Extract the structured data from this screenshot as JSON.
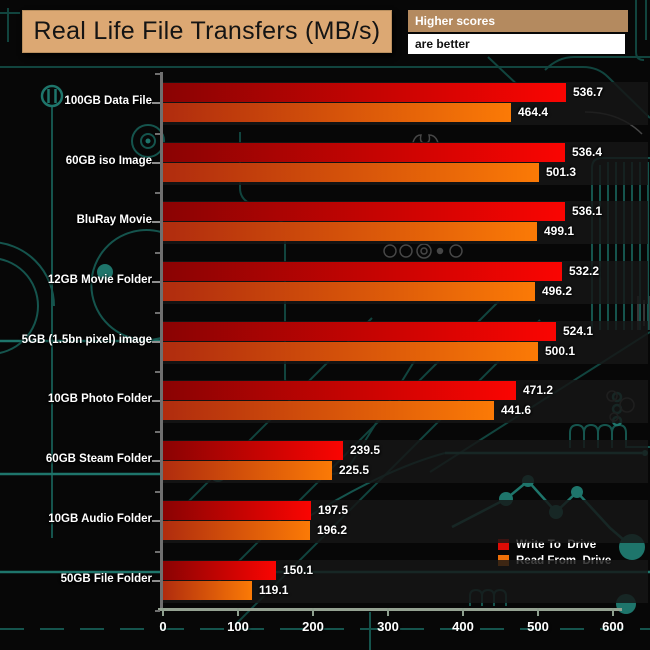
{
  "title": "Real Life File Transfers (MB/s)",
  "banner": {
    "line1": "Higher scores",
    "line2": "are better"
  },
  "legend": [
    {
      "label": "Write To  Drive",
      "color": "#dd0b05"
    },
    {
      "label": "Read From  Drive",
      "color": "#ee6f08"
    }
  ],
  "colors": {
    "write_start": "#8a0303",
    "write_end": "#fa0502",
    "read_start": "#b02c0e",
    "read_end": "#fb7a06",
    "title_box_bg": "#dca873",
    "higher_box_bg": "#b48a5f",
    "circuit_teal": "#1e756b",
    "background": "#070707"
  },
  "chart_data": {
    "type": "bar",
    "orientation": "horizontal",
    "title": "Real Life File Transfers (MB/s)",
    "categories": [
      "100GB Data File",
      "60GB iso Image",
      "BluRay Movie",
      "12GB Movie Folder",
      "5GB (1.5bn pixel) image",
      "10GB Photo Folder",
      "60GB Steam Folder",
      "10GB Audio Folder",
      "50GB File Folder"
    ],
    "series": [
      {
        "name": "Write To  Drive",
        "values": [
          536.7,
          536.4,
          536.1,
          532.2,
          524.1,
          471.2,
          239.5,
          197.5,
          150.1
        ]
      },
      {
        "name": "Read From  Drive",
        "values": [
          464.4,
          501.3,
          499.1,
          496.2,
          500.1,
          441.6,
          225.5,
          196.2,
          119.1
        ]
      }
    ],
    "xlim": [
      0,
      600
    ],
    "x_ticks": [
      0,
      100,
      200,
      300,
      400,
      500,
      600
    ],
    "value_labels": true,
    "legend_position": "bottom-right",
    "grid": false
  }
}
